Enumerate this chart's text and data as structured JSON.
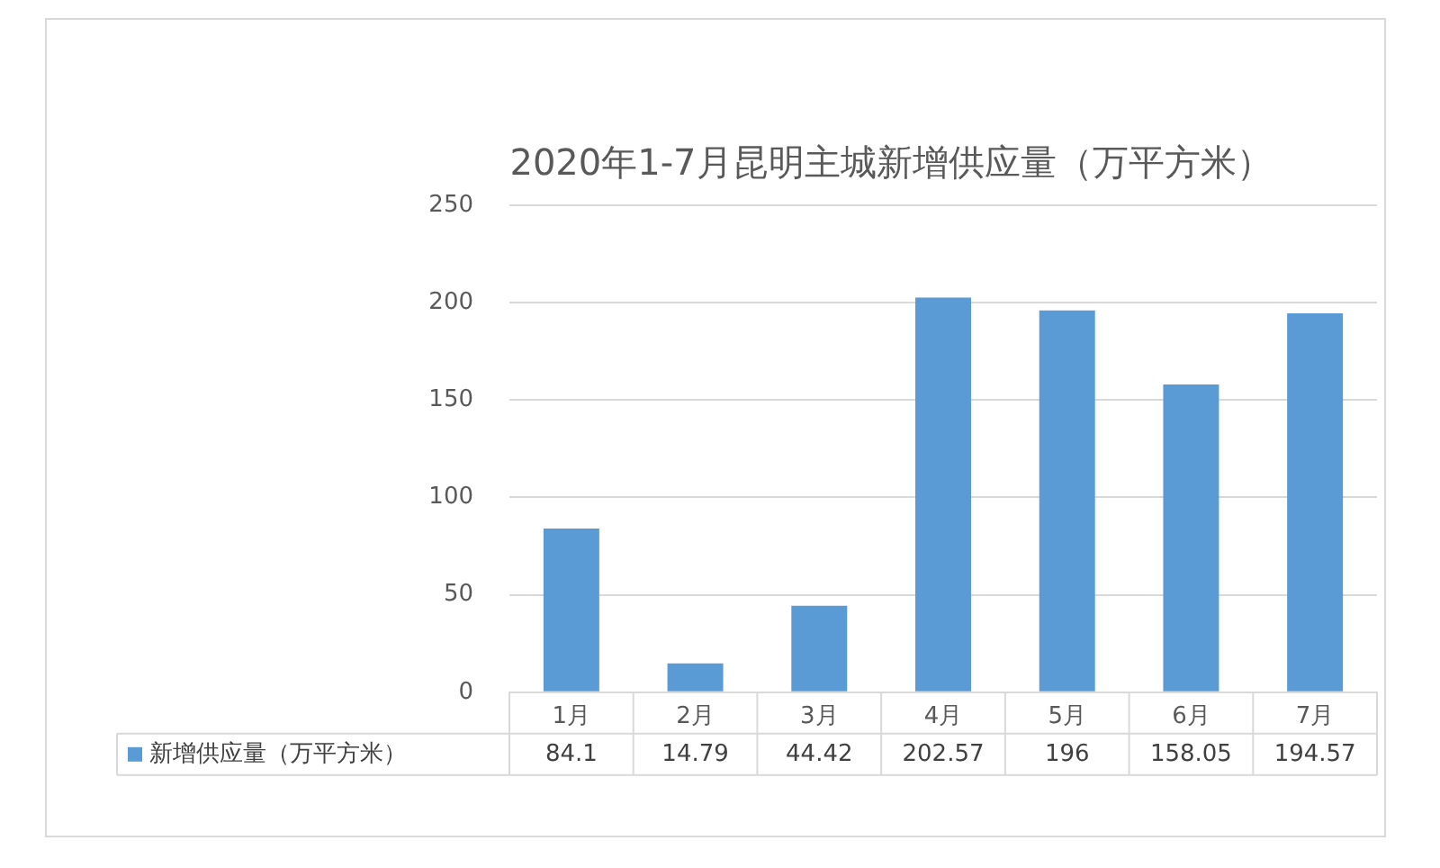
{
  "chart_data": {
    "type": "bar",
    "title": "2020年1-7月昆明主城新增供应量（万平方米）",
    "categories": [
      "1月",
      "2月",
      "3月",
      "4月",
      "5月",
      "6月",
      "7月"
    ],
    "series": [
      {
        "name": "新增供应量（万平方米）",
        "color": "#5b9bd5",
        "values": [
          84.1,
          14.79,
          44.42,
          202.57,
          196,
          158.05,
          194.57
        ]
      }
    ],
    "ylim": [
      0,
      250
    ],
    "yticks": [
      0,
      50,
      100,
      150,
      200,
      250
    ],
    "grid": "y",
    "data_labels": true,
    "legend": "bottom"
  }
}
